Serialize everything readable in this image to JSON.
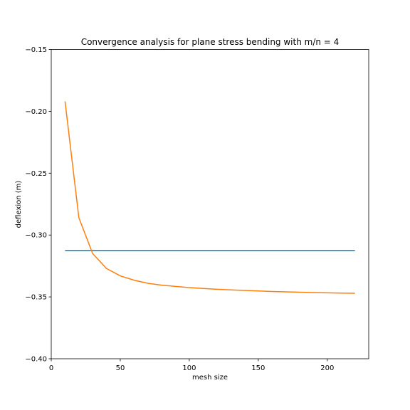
{
  "chart_data": {
    "type": "line",
    "title": "Convergence analysis for plane stress bending with m/n = 4",
    "xlabel": "mesh size",
    "ylabel": "deflexion (m)",
    "xlim": [
      0,
      230
    ],
    "ylim": [
      -0.4,
      -0.15
    ],
    "xticks": [
      0,
      50,
      100,
      150,
      200
    ],
    "yticks": [
      -0.4,
      -0.35,
      -0.3,
      -0.25,
      -0.2,
      -0.15
    ],
    "xtick_labels": [
      "0",
      "50",
      "100",
      "150",
      "200"
    ],
    "ytick_labels": [
      "−0.40",
      "−0.35",
      "−0.30",
      "−0.25",
      "−0.20",
      "−0.15"
    ],
    "grid": false,
    "legend": "none",
    "series": [
      {
        "color": "#1f77b4",
        "x": [
          10,
          220
        ],
        "y": [
          -0.3125,
          -0.3125
        ]
      },
      {
        "color": "#ff7f0e",
        "x": [
          10,
          20,
          30,
          40,
          50,
          60,
          70,
          80,
          90,
          100,
          110,
          120,
          130,
          140,
          150,
          160,
          170,
          180,
          190,
          200,
          210,
          220
        ],
        "y": [
          -0.192,
          -0.286,
          -0.315,
          -0.327,
          -0.333,
          -0.3365,
          -0.339,
          -0.3405,
          -0.3415,
          -0.3425,
          -0.3432,
          -0.3438,
          -0.3443,
          -0.3448,
          -0.3452,
          -0.3456,
          -0.3459,
          -0.3462,
          -0.3465,
          -0.3467,
          -0.3469,
          -0.3471
        ]
      }
    ]
  }
}
